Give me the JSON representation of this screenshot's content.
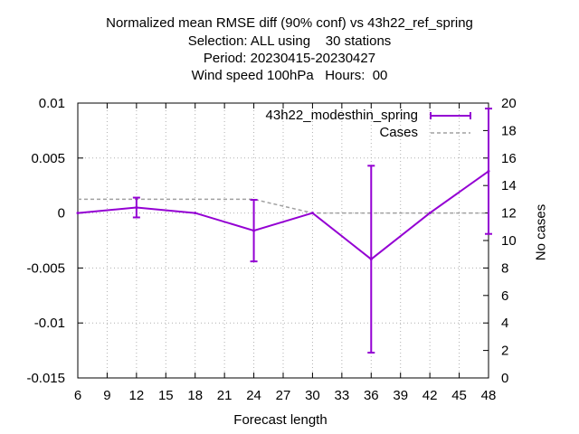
{
  "title_lines": [
    "Normalized mean RMSE diff (90% conf) vs 43h22_ref_spring",
    "Selection: ALL using    30 stations",
    "Period: 20230415-20230427",
    "Wind speed 100hPa   Hours:  00"
  ],
  "chart_data": {
    "type": "line",
    "xlabel": "Forecast length",
    "ylabel": "",
    "y2label": "No cases",
    "xlim": [
      6,
      48
    ],
    "ylim": [
      -0.015,
      0.01
    ],
    "y2lim": [
      0,
      20
    ],
    "xticks": [
      6,
      9,
      12,
      15,
      18,
      21,
      24,
      27,
      30,
      33,
      36,
      39,
      42,
      45,
      48
    ],
    "yticks": [
      -0.015,
      -0.01,
      -0.005,
      0,
      0.005,
      0.01
    ],
    "ytick_labels": [
      "-0.015",
      "-0.01",
      "-0.005",
      "0",
      "0.005",
      "0.01"
    ],
    "y2ticks": [
      0,
      2,
      4,
      6,
      8,
      10,
      12,
      14,
      16,
      18,
      20
    ],
    "grid": true,
    "legend_position": "top-right",
    "series": [
      {
        "name": "43h22_modesthin_spring",
        "color": "#9400d3",
        "x": [
          6,
          12,
          18,
          24,
          30,
          36,
          42,
          48
        ],
        "y": [
          0.0,
          0.0005,
          0.0,
          -0.0016,
          0.0,
          -0.0042,
          0.0,
          0.0038
        ],
        "err_low": [
          0.0,
          -0.0004,
          0.0,
          -0.0044,
          0.0,
          -0.0127,
          0.0,
          -0.0019
        ],
        "err_high": [
          0.0,
          0.0014,
          0.0,
          0.0012,
          0.0,
          0.0043,
          0.0,
          0.0095
        ]
      },
      {
        "name": "Cases",
        "color": "#a0a0a0",
        "axis": "right",
        "dashed": true,
        "x": [
          6,
          12,
          18,
          24,
          30,
          36,
          42,
          48
        ],
        "y": [
          13,
          13,
          13,
          13,
          12,
          12,
          12,
          12
        ]
      }
    ]
  }
}
